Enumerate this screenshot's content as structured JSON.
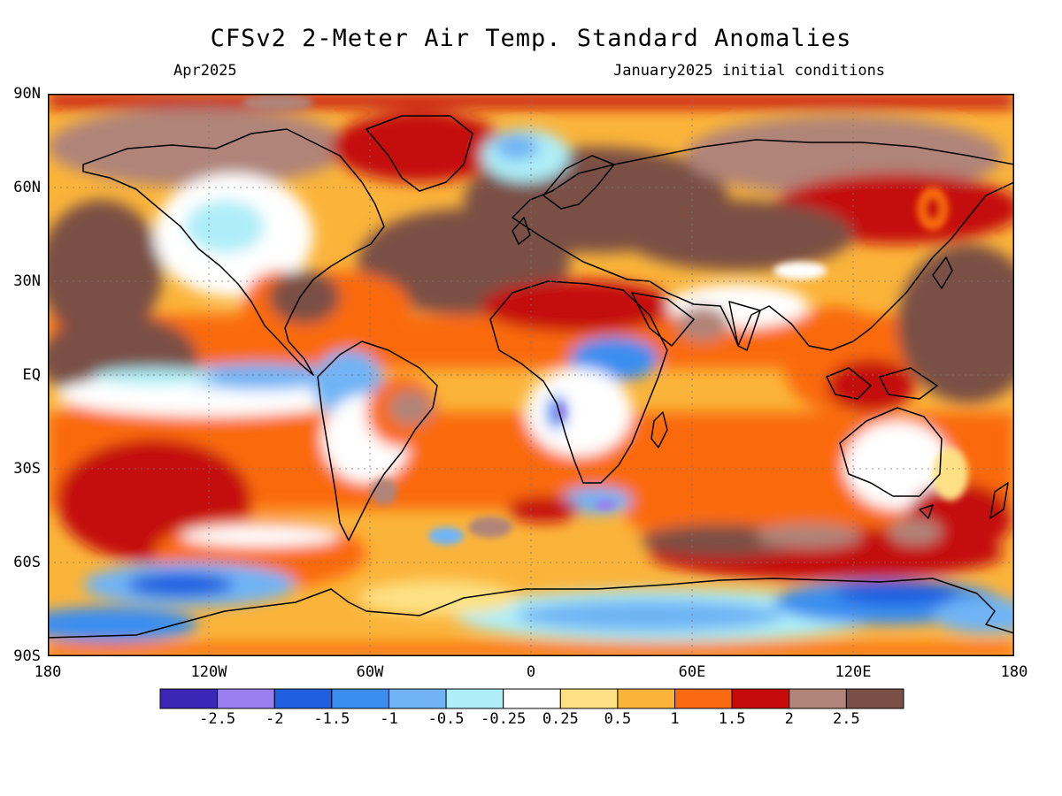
{
  "header": {
    "title": "CFSv2 2-Meter Air Temp. Standard Anomalies",
    "valid_month": "Apr2025",
    "init_conditions": "January2025 initial conditions"
  },
  "axes": {
    "lat_labels": [
      "90N",
      "60N",
      "30N",
      "EQ",
      "30S",
      "60S",
      "90S"
    ],
    "lon_labels": [
      "180",
      "120W",
      "60W",
      "0",
      "60E",
      "120E",
      "180"
    ]
  },
  "colorbar": {
    "colors": [
      "#3b26b8",
      "#9b7ff0",
      "#1f5fe0",
      "#3a8ef0",
      "#70b4f5",
      "#aeeef8",
      "#ffffff",
      "#fde184",
      "#fbb43a",
      "#fa6a10",
      "#c40a0a",
      "#b08479",
      "#7a4f45"
    ],
    "labels": [
      "-2.5",
      "-2",
      "-1.5",
      "-1",
      "-0.5",
      "-0.25",
      "0.25",
      "0.5",
      "1",
      "1.5",
      "2",
      "2.5"
    ]
  }
}
